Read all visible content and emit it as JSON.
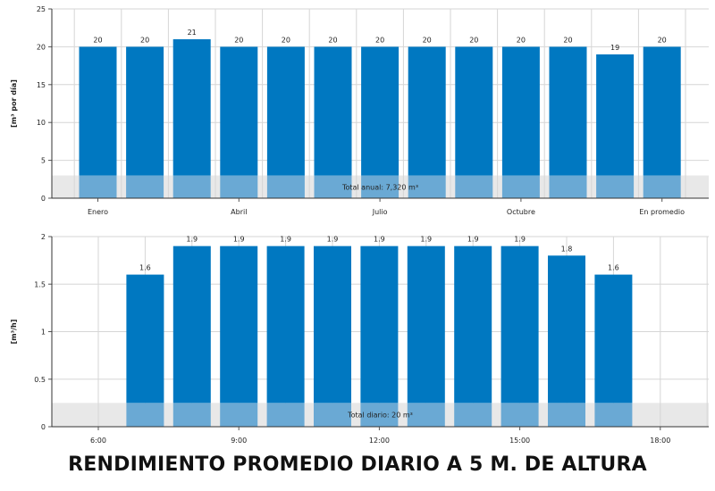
{
  "caption": "RENDIMIENTO PROMEDIO DIARIO A 5 M. DE ALTURA",
  "colors": {
    "bar": "#0078c1",
    "band": "#6aa9d4",
    "band_bg": "#e8e8e8",
    "grid": "#d6d6d6"
  },
  "chart_data": [
    {
      "type": "bar",
      "ylabel": "[m³ por día]",
      "ylim": [
        0,
        25
      ],
      "yticks": [
        "0",
        "5",
        "10",
        "15",
        "20",
        "25"
      ],
      "categories": [
        "Enero",
        "",
        "",
        "Abril",
        "",
        "",
        "Julio",
        "",
        "",
        "Octubre",
        "",
        "",
        "En promedio"
      ],
      "values": [
        20,
        20,
        21,
        20,
        20,
        20,
        20,
        20,
        20,
        20,
        20,
        19,
        20
      ],
      "value_labels": [
        "20",
        "20",
        "21",
        "20",
        "20",
        "20",
        "20",
        "20",
        "20",
        "20",
        "20",
        "19",
        "20"
      ],
      "band_value": 3,
      "band_label": "Total anual: 7,320 m³",
      "grid": true
    },
    {
      "type": "bar",
      "ylabel": "[m³/h]",
      "ylim": [
        0,
        2
      ],
      "yticks": [
        "0",
        "0.5",
        "1",
        "1.5",
        "2"
      ],
      "hours": [
        7,
        8,
        9,
        10,
        11,
        12,
        13,
        14,
        15,
        16,
        17
      ],
      "xlim": [
        5,
        19
      ],
      "xticks": [
        "6:00",
        "9:00",
        "12:00",
        "15:00",
        "18:00"
      ],
      "xtick_hours": [
        6,
        9,
        12,
        15,
        18
      ],
      "values": [
        1.6,
        1.9,
        1.9,
        1.9,
        1.9,
        1.9,
        1.9,
        1.9,
        1.9,
        1.8,
        1.6
      ],
      "value_labels": [
        "1.6",
        "1.9",
        "1.9",
        "1.9",
        "1.9",
        "1.9",
        "1.9",
        "1.9",
        "1.9",
        "1.8",
        "1.6"
      ],
      "band_value": 0.25,
      "band_label": "Total diario: 20 m³",
      "grid": true
    }
  ]
}
